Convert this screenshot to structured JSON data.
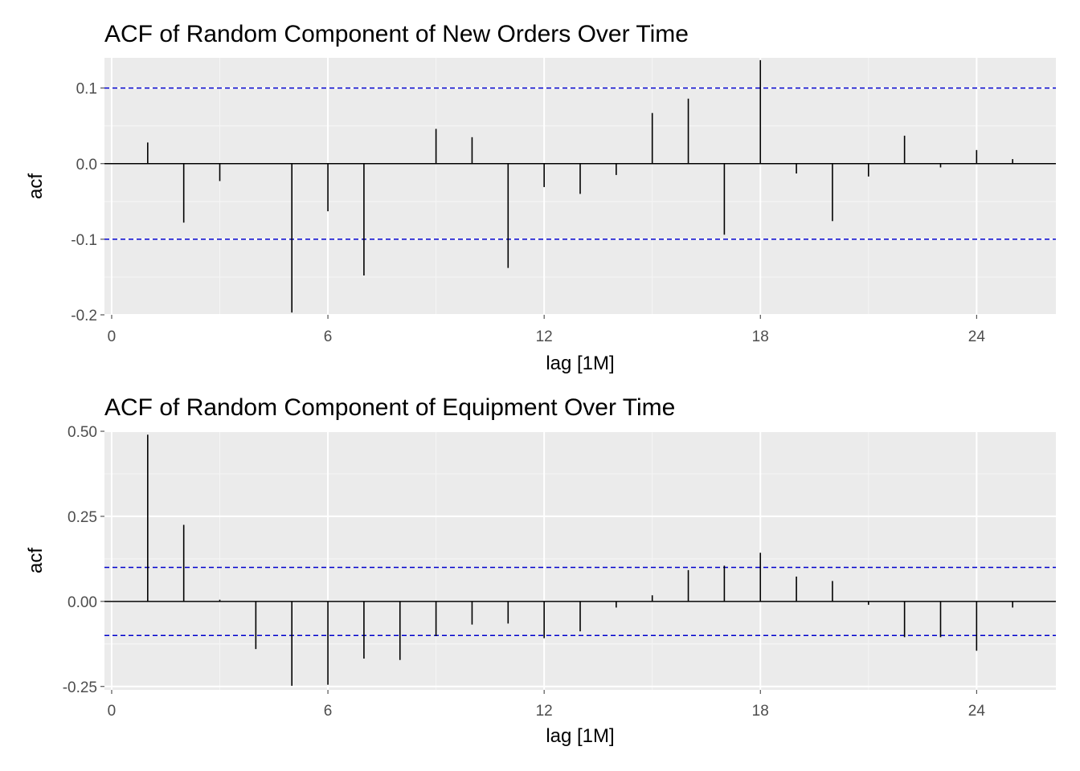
{
  "chart_data": [
    {
      "type": "bar",
      "title": "ACF of Random Component of New Orders Over Time",
      "xlabel": "lag [1M]",
      "ylabel": "acf",
      "xlim": [
        -0.2,
        26.2
      ],
      "ylim": [
        -0.2,
        0.14
      ],
      "x_ticks": [
        0,
        6,
        12,
        18,
        24
      ],
      "x_tick_labels": [
        "0",
        "6",
        "12",
        "18",
        "24"
      ],
      "y_ticks": [
        -0.2,
        -0.1,
        0.0,
        0.1
      ],
      "y_tick_labels": [
        "-0.2",
        "-0.1",
        "0.0",
        "0.1"
      ],
      "confidence_bounds": [
        0.1,
        -0.1
      ],
      "lags": [
        1,
        2,
        3,
        4,
        5,
        6,
        7,
        8,
        9,
        10,
        11,
        12,
        13,
        14,
        15,
        16,
        17,
        18,
        19,
        20,
        21,
        22,
        23,
        24,
        25
      ],
      "values": [
        0.028,
        -0.078,
        -0.023,
        0.0,
        -0.197,
        -0.063,
        -0.148,
        0.0,
        0.046,
        0.035,
        -0.138,
        -0.031,
        -0.04,
        -0.015,
        0.067,
        0.086,
        -0.094,
        0.137,
        -0.013,
        -0.076,
        -0.017,
        0.037,
        -0.005,
        0.018,
        0.006
      ],
      "grid": true
    },
    {
      "type": "bar",
      "title": "ACF of Random Component of Equipment Over Time",
      "xlabel": "lag [1M]",
      "ylabel": "acf",
      "xlim": [
        -0.2,
        26.2
      ],
      "ylim": [
        -0.26,
        0.5
      ],
      "x_ticks": [
        0,
        6,
        12,
        18,
        24
      ],
      "x_tick_labels": [
        "0",
        "6",
        "12",
        "18",
        "24"
      ],
      "y_ticks": [
        -0.25,
        0.0,
        0.25,
        0.5
      ],
      "y_tick_labels": [
        "-0.25",
        "0.00",
        "0.25",
        "0.50"
      ],
      "confidence_bounds": [
        0.1,
        -0.1
      ],
      "lags": [
        1,
        2,
        3,
        4,
        5,
        6,
        7,
        8,
        9,
        10,
        11,
        12,
        13,
        14,
        15,
        16,
        17,
        18,
        19,
        20,
        21,
        22,
        23,
        24,
        25
      ],
      "values": [
        0.49,
        0.225,
        0.005,
        -0.14,
        -0.248,
        -0.245,
        -0.168,
        -0.172,
        -0.102,
        -0.068,
        -0.065,
        -0.108,
        -0.088,
        -0.018,
        0.018,
        0.092,
        0.105,
        0.143,
        0.073,
        0.06,
        -0.01,
        -0.105,
        -0.105,
        -0.145,
        -0.018
      ],
      "grid": true
    }
  ]
}
